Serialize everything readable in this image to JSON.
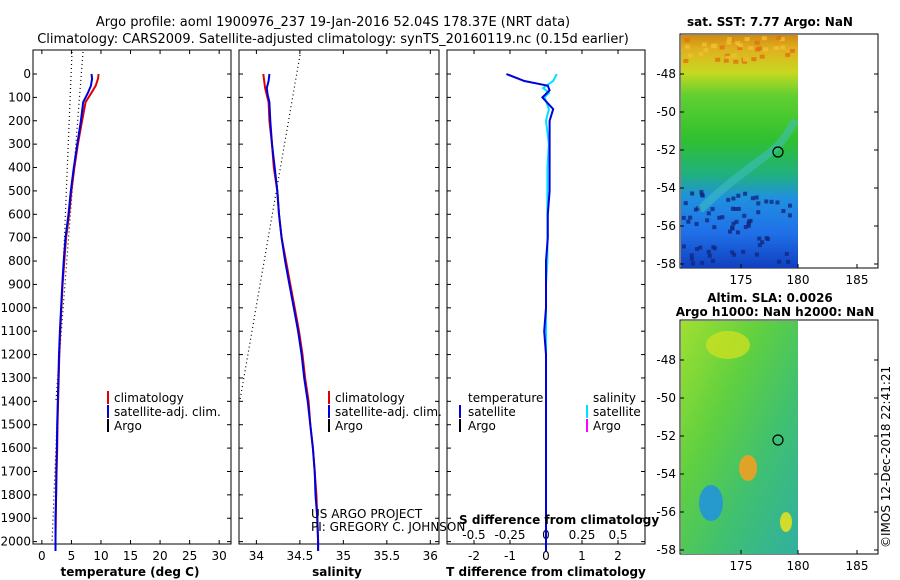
{
  "header": {
    "line1": "Argo profile: aoml 1900976_237 19-Jan-2016 52.04S 178.37E (NRT data)",
    "line2": "Climatology: CARS2009. Satellite-adjusted climatology: synTS_20160119.nc (0.15d earlier)"
  },
  "depth_ticks": [
    "0",
    "100",
    "200",
    "300",
    "400",
    "500",
    "600",
    "700",
    "800",
    "900",
    "1000",
    "1100",
    "1200",
    "1300",
    "1400",
    "1500",
    "1600",
    "1700",
    "1800",
    "1900",
    "2000"
  ],
  "colors": {
    "climatology": "#e00000",
    "satellite": "#0000dd",
    "argo": "#000000",
    "satellite_s": "#00e0ff",
    "argo_s": "#ff00ff"
  },
  "chart_data": [
    {
      "type": "line",
      "title": "",
      "xlabel": "temperature (deg C)",
      "ylabel": "depth",
      "xlim": [
        -1.5,
        32
      ],
      "ylim": [
        2060,
        0
      ],
      "xticks": [
        "0",
        "5",
        "10",
        "15",
        "20",
        "25",
        "30"
      ],
      "legend": [
        "climatology",
        "satellite-adj. clim.",
        "Argo"
      ],
      "series": [
        {
          "name": "climatology",
          "depth": [
            0,
            20,
            50,
            80,
            120,
            200,
            300,
            400,
            500,
            600,
            700,
            800,
            900,
            1000,
            1100,
            1200,
            1300,
            1400,
            1500,
            1600,
            1700,
            1800,
            1900,
            2000,
            2040
          ],
          "values": [
            9.6,
            9.5,
            9.1,
            8.4,
            7.4,
            6.8,
            6.1,
            5.5,
            5.0,
            4.6,
            4.1,
            3.8,
            3.5,
            3.3,
            3.1,
            2.95,
            2.85,
            2.75,
            2.65,
            2.6,
            2.5,
            2.4,
            2.35,
            2.3,
            2.3
          ]
        },
        {
          "name": "satellite-adj. clim.",
          "depth": [
            0,
            20,
            50,
            80,
            120,
            200,
            300,
            400,
            500,
            600,
            700,
            800,
            900,
            1000,
            1100,
            1200,
            1300,
            1400,
            1500,
            1600,
            1700,
            1800,
            1900,
            2000,
            2040
          ],
          "values": [
            8.4,
            8.5,
            8.3,
            7.8,
            7.0,
            6.6,
            6.0,
            5.4,
            4.9,
            4.5,
            4.0,
            3.7,
            3.45,
            3.25,
            3.05,
            2.9,
            2.8,
            2.7,
            2.6,
            2.55,
            2.45,
            2.4,
            2.3,
            2.3,
            2.3
          ]
        },
        {
          "name": "Argo",
          "depth": [],
          "values": []
        }
      ]
    },
    {
      "type": "line",
      "xlabel": "salinity",
      "xlim": [
        33.8,
        36.1
      ],
      "ylim": [
        2060,
        0
      ],
      "xticks": [
        "34",
        "34.5",
        "35",
        "35.5",
        "36"
      ],
      "legend": [
        "climatology",
        "satellite-adj. clim.",
        "Argo"
      ],
      "series": [
        {
          "name": "climatology",
          "depth": [
            0,
            30,
            60,
            90,
            120,
            200,
            300,
            400,
            500,
            600,
            700,
            800,
            900,
            1000,
            1100,
            1200,
            1300,
            1400,
            1500,
            1600,
            1700,
            1800,
            1900,
            2000,
            2040
          ],
          "values": [
            34.08,
            34.09,
            34.1,
            34.12,
            34.14,
            34.15,
            34.18,
            34.2,
            34.24,
            34.26,
            34.29,
            34.34,
            34.39,
            34.44,
            34.49,
            34.53,
            34.56,
            34.6,
            34.62,
            34.65,
            34.67,
            34.69,
            34.7,
            34.71,
            34.71
          ]
        },
        {
          "name": "satellite-adj. clim.",
          "depth": [
            0,
            30,
            60,
            90,
            120,
            200,
            300,
            400,
            500,
            600,
            700,
            800,
            900,
            1000,
            1100,
            1200,
            1300,
            1400,
            1500,
            1600,
            1700,
            1800,
            1900,
            2000,
            2040
          ],
          "values": [
            34.15,
            34.14,
            34.12,
            34.13,
            34.15,
            34.16,
            34.18,
            34.21,
            34.24,
            34.26,
            34.29,
            34.33,
            34.38,
            34.43,
            34.48,
            34.52,
            34.55,
            34.59,
            34.62,
            34.65,
            34.67,
            34.68,
            34.7,
            34.71,
            34.71
          ]
        },
        {
          "name": "Argo",
          "depth": [],
          "values": []
        }
      ]
    },
    {
      "type": "line",
      "xlabel": "T difference from climatology",
      "xlabel2": "S difference from climatology",
      "xlim": [
        -2.75,
        2.75
      ],
      "ylim": [
        2060,
        0
      ],
      "xticks": [
        "-2",
        "-1",
        "0",
        "1",
        "2"
      ],
      "xticks2": [
        "-0.5",
        "-0.25",
        "0",
        "0.25",
        "0.5"
      ],
      "legend_left": {
        "heading": "temperature",
        "items": [
          "satellite",
          "Argo"
        ]
      },
      "legend_right": {
        "heading": "salinity",
        "items": [
          "satellite",
          "Argo"
        ]
      },
      "series": [
        {
          "name": "temperature satellite",
          "depth": [
            0,
            30,
            50,
            70,
            100,
            150,
            200,
            300,
            400,
            500,
            600,
            700,
            800,
            900,
            1000,
            1100,
            1200,
            1300,
            1400,
            1500,
            1600,
            1700,
            1800,
            1900,
            2000,
            2040
          ],
          "values": [
            -1.1,
            -0.6,
            0.05,
            0.1,
            -0.1,
            0.2,
            0.1,
            0.1,
            0.1,
            0.1,
            0.05,
            0.05,
            0.0,
            0.0,
            0.0,
            -0.05,
            0.0,
            0.0,
            0.0,
            0.0,
            0.0,
            0.0,
            0.0,
            0.0,
            0.0,
            0.0
          ]
        },
        {
          "name": "salinity satellite",
          "depth": [
            0,
            30,
            60,
            80,
            100,
            150,
            200,
            300,
            400,
            500,
            600,
            700,
            800,
            900,
            1000,
            1200,
            1400,
            1600,
            1800,
            2000,
            2040
          ],
          "values": [
            0.075,
            0.05,
            -0.02,
            0.02,
            -0.01,
            0.02,
            0.0,
            0.02,
            0.01,
            0.01,
            0.01,
            0.01,
            0.01,
            0.0,
            0.0,
            0.0,
            0.0,
            0.0,
            0.0,
            0.0,
            0.0
          ]
        }
      ]
    },
    {
      "type": "heatmap",
      "title": "sat. SST: 7.77 Argo: NaN",
      "xticks": [
        "175",
        "180",
        "185"
      ],
      "yticks": [
        "-48",
        "-50",
        "-52",
        "-54",
        "-56",
        "-58"
      ]
    },
    {
      "type": "heatmap",
      "title": "Altim. SLA: 0.0026",
      "title2": "Argo h1000: NaN h2000: NaN",
      "xticks": [
        "175",
        "180",
        "185"
      ],
      "yticks": [
        "-48",
        "-50",
        "-52",
        "-54",
        "-56",
        "-58"
      ]
    }
  ],
  "credit": {
    "line1": "US ARGO PROJECT",
    "line2": "PI: GREGORY C. JOHNSON"
  },
  "stamp": "©IMOS 12-Dec-2018 22:41:21"
}
